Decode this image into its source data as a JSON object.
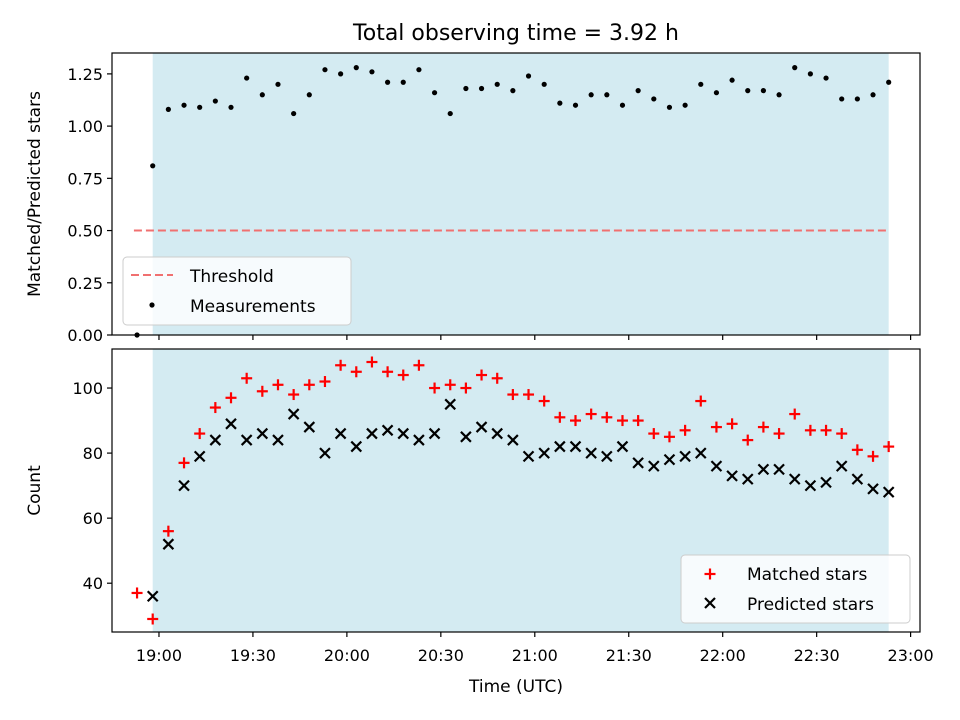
{
  "chart_data": [
    {
      "type": "scatter",
      "title": "Total observing time = 3.92 h",
      "xlabel": "",
      "ylabel": "Matched/Predicted stars",
      "ylim": [
        0,
        1.35
      ],
      "yticks": [
        "0.00",
        "0.25",
        "0.50",
        "0.75",
        "1.00",
        "1.25"
      ],
      "xlim": [
        "18:45",
        "23:03"
      ],
      "xticks": [
        "19:00",
        "19:30",
        "20:00",
        "20:30",
        "21:00",
        "21:30",
        "22:00",
        "22:30",
        "23:00"
      ],
      "shaded_region": {
        "start": "18:58",
        "end": "22:53",
        "color": "#d4ebf2"
      },
      "threshold": {
        "name": "Threshold",
        "value": 0.5,
        "start": "18:52",
        "end": "22:53",
        "color": "#f07070"
      },
      "series": [
        {
          "name": "Measurements",
          "color": "#000000",
          "x": [
            "18:53",
            "18:58",
            "19:03",
            "19:08",
            "19:13",
            "19:18",
            "19:23",
            "19:28",
            "19:33",
            "19:38",
            "19:43",
            "19:48",
            "19:53",
            "19:58",
            "20:03",
            "20:08",
            "20:13",
            "20:18",
            "20:23",
            "20:28",
            "20:33",
            "20:38",
            "20:43",
            "20:48",
            "20:53",
            "20:58",
            "21:03",
            "21:08",
            "21:13",
            "21:18",
            "21:23",
            "21:28",
            "21:33",
            "21:38",
            "21:43",
            "21:48",
            "21:53",
            "21:58",
            "22:03",
            "22:08",
            "22:13",
            "22:18",
            "22:23",
            "22:28",
            "22:33",
            "22:38",
            "22:43",
            "22:48",
            "22:53"
          ],
          "y": [
            0.0,
            0.81,
            1.08,
            1.1,
            1.09,
            1.12,
            1.09,
            1.23,
            1.15,
            1.2,
            1.06,
            1.15,
            1.27,
            1.25,
            1.28,
            1.26,
            1.21,
            1.21,
            1.27,
            1.16,
            1.06,
            1.18,
            1.18,
            1.2,
            1.17,
            1.24,
            1.2,
            1.11,
            1.1,
            1.15,
            1.15,
            1.1,
            1.17,
            1.13,
            1.09,
            1.1,
            1.2,
            1.16,
            1.22,
            1.17,
            1.17,
            1.15,
            1.28,
            1.25,
            1.23,
            1.13,
            1.13,
            1.15,
            1.21
          ]
        }
      ],
      "legend": {
        "position": "lower-left"
      }
    },
    {
      "type": "scatter",
      "title": "",
      "xlabel": "Time (UTC)",
      "ylabel": "Count",
      "ylim": [
        25,
        112
      ],
      "yticks": [
        "40",
        "60",
        "80",
        "100"
      ],
      "xlim": [
        "18:45",
        "23:03"
      ],
      "xticks": [
        "19:00",
        "19:30",
        "20:00",
        "20:30",
        "21:00",
        "21:30",
        "22:00",
        "22:30",
        "23:00"
      ],
      "shaded_region": {
        "start": "18:58",
        "end": "22:53",
        "color": "#d4ebf2"
      },
      "series": [
        {
          "name": "Matched stars",
          "marker": "+",
          "color": "#ff0000",
          "x": [
            "18:53",
            "18:58",
            "19:03",
            "19:08",
            "19:13",
            "19:18",
            "19:23",
            "19:28",
            "19:33",
            "19:38",
            "19:43",
            "19:48",
            "19:53",
            "19:58",
            "20:03",
            "20:08",
            "20:13",
            "20:18",
            "20:23",
            "20:28",
            "20:33",
            "20:38",
            "20:43",
            "20:48",
            "20:53",
            "20:58",
            "21:03",
            "21:08",
            "21:13",
            "21:18",
            "21:23",
            "21:28",
            "21:33",
            "21:38",
            "21:43",
            "21:48",
            "21:53",
            "21:58",
            "22:03",
            "22:08",
            "22:13",
            "22:18",
            "22:23",
            "22:28",
            "22:33",
            "22:38",
            "22:43",
            "22:48",
            "22:53"
          ],
          "y": [
            37,
            29,
            56,
            77,
            86,
            94,
            97,
            103,
            99,
            101,
            98,
            101,
            102,
            107,
            105,
            108,
            105,
            104,
            107,
            100,
            101,
            100,
            104,
            103,
            98,
            98,
            96,
            91,
            90,
            92,
            91,
            90,
            90,
            86,
            85,
            87,
            96,
            88,
            89,
            84,
            88,
            86,
            92,
            87,
            87,
            86,
            81,
            79,
            82
          ]
        },
        {
          "name": "Predicted stars",
          "marker": "x",
          "color": "#000000",
          "x": [
            "18:58",
            "19:03",
            "19:08",
            "19:13",
            "19:18",
            "19:23",
            "19:28",
            "19:33",
            "19:38",
            "19:43",
            "19:48",
            "19:53",
            "19:58",
            "20:03",
            "20:08",
            "20:13",
            "20:18",
            "20:23",
            "20:28",
            "20:33",
            "20:38",
            "20:43",
            "20:48",
            "20:53",
            "20:58",
            "21:03",
            "21:08",
            "21:13",
            "21:18",
            "21:23",
            "21:28",
            "21:33",
            "21:38",
            "21:43",
            "21:48",
            "21:53",
            "21:58",
            "22:03",
            "22:08",
            "22:13",
            "22:18",
            "22:23",
            "22:28",
            "22:33",
            "22:38",
            "22:43",
            "22:48",
            "22:53"
          ],
          "y": [
            36,
            52,
            70,
            79,
            84,
            89,
            84,
            86,
            84,
            92,
            88,
            80,
            86,
            82,
            86,
            87,
            86,
            84,
            86,
            95,
            85,
            88,
            86,
            84,
            79,
            80,
            82,
            82,
            80,
            79,
            82,
            77,
            76,
            78,
            79,
            80,
            76,
            73,
            72,
            75,
            75,
            72,
            70,
            71,
            76,
            72,
            69,
            68
          ]
        }
      ],
      "legend": {
        "position": "lower-right"
      }
    }
  ]
}
